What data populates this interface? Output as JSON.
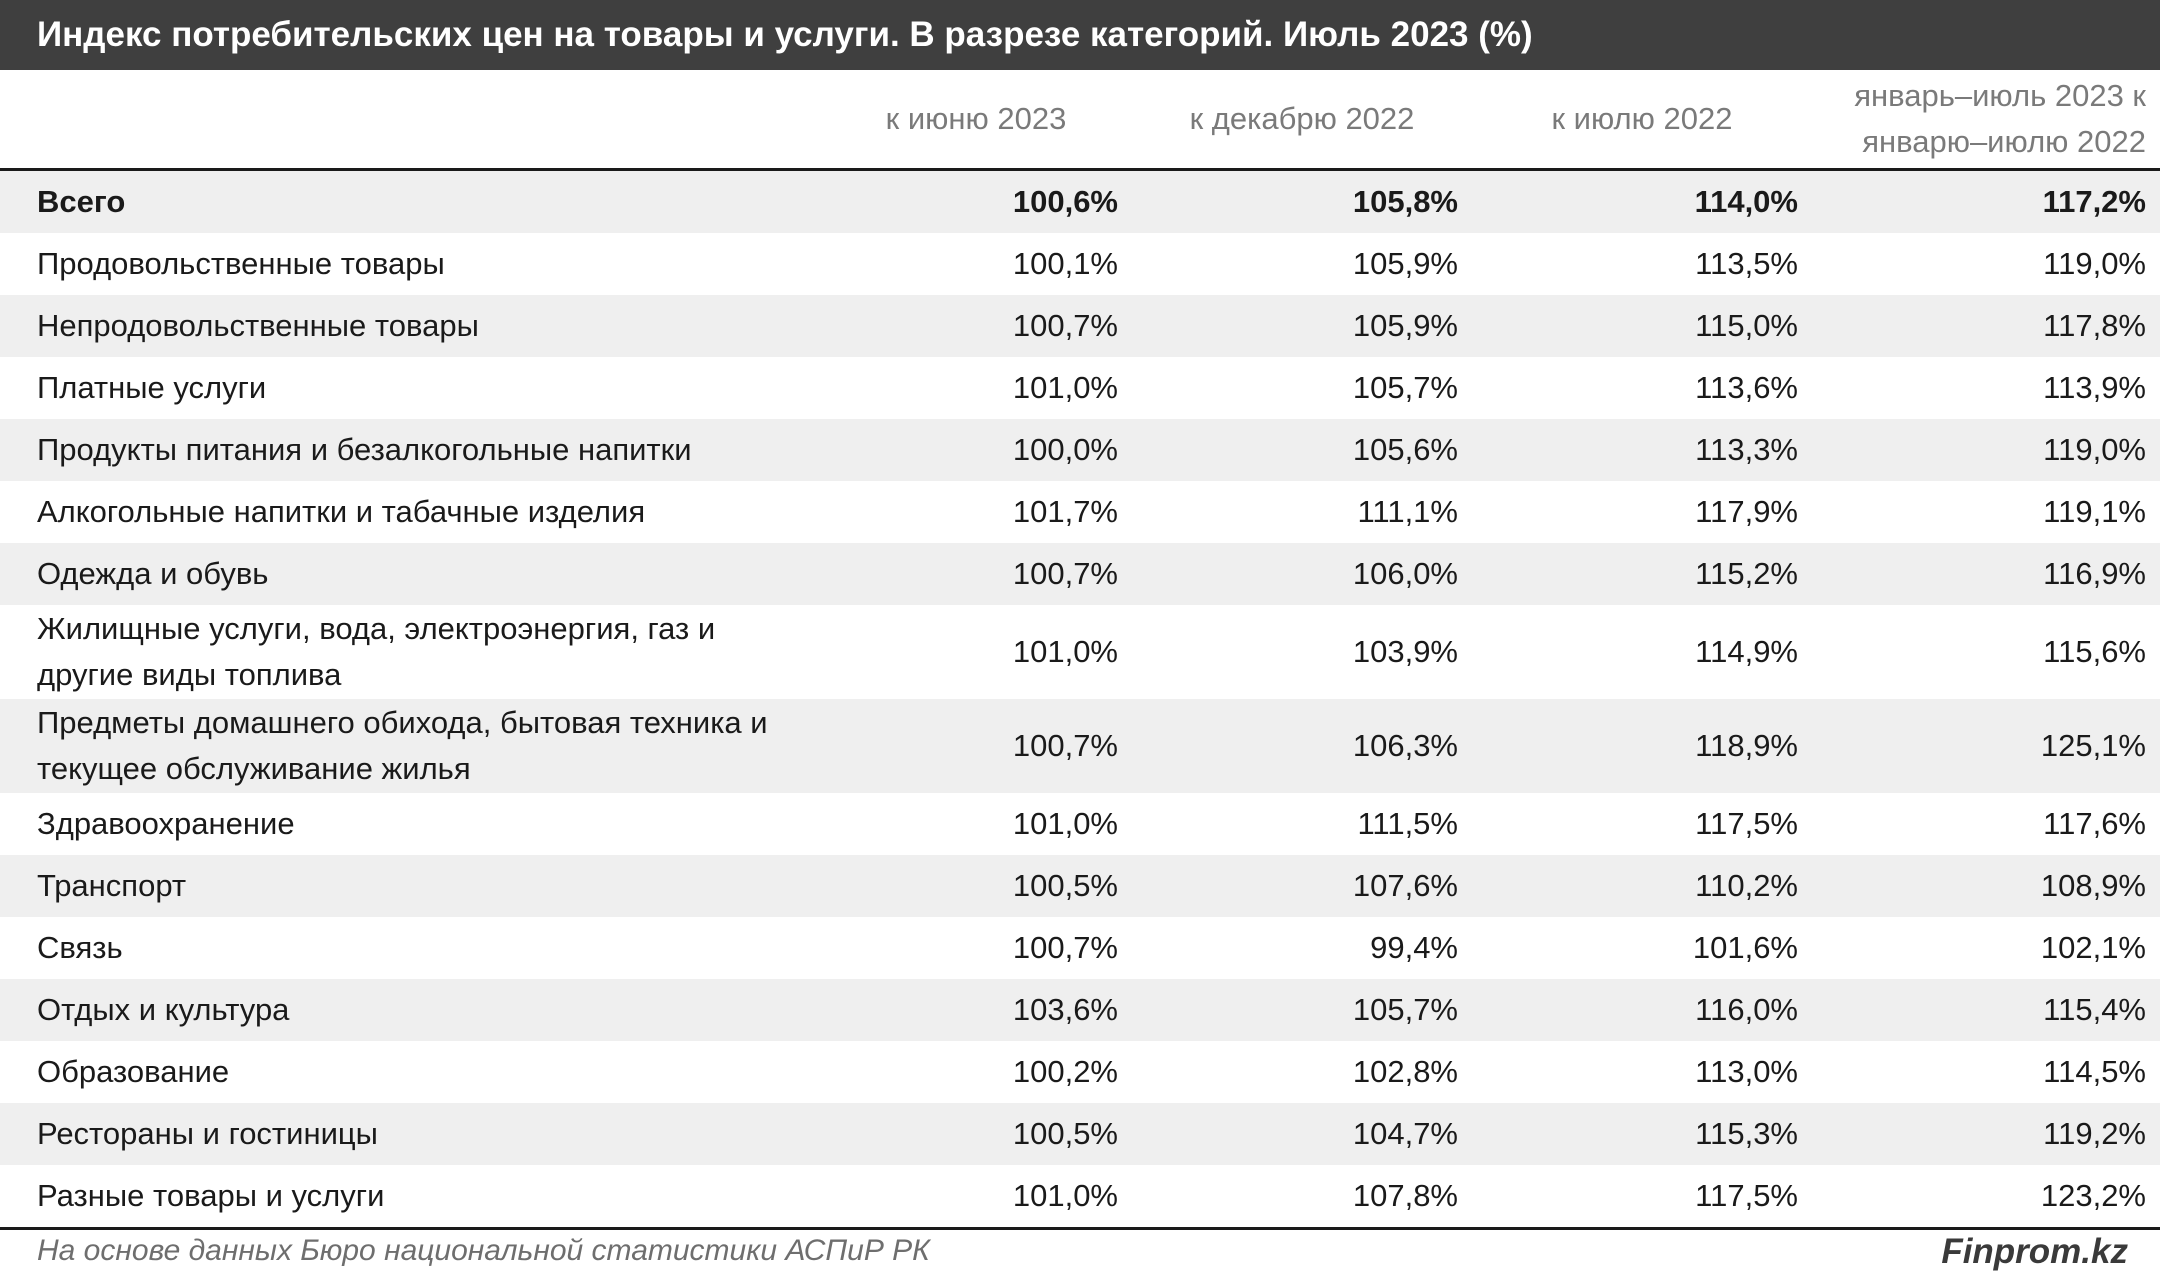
{
  "title": "Индекс потребительских цен на товары и услуги. В разрезе категорий. Июль 2023 (%)",
  "columns": [
    "к июню 2023",
    "к декабрю 2022",
    "к июлю 2022",
    "январь–июль 2023 к январю–июлю 2022"
  ],
  "rows": [
    {
      "category": "Всего",
      "values": [
        "100,6%",
        "105,8%",
        "114,0%",
        "117,2%"
      ]
    },
    {
      "category": "Продовольственные товары",
      "values": [
        "100,1%",
        "105,9%",
        "113,5%",
        "119,0%"
      ]
    },
    {
      "category": "Непродовольственные товары",
      "values": [
        "100,7%",
        "105,9%",
        "115,0%",
        "117,8%"
      ]
    },
    {
      "category": "Платные услуги",
      "values": [
        "101,0%",
        "105,7%",
        "113,6%",
        "113,9%"
      ]
    },
    {
      "category": "Продукты питания и безалкогольные напитки",
      "values": [
        "100,0%",
        "105,6%",
        "113,3%",
        "119,0%"
      ]
    },
    {
      "category": "Алкогольные напитки и табачные изделия",
      "values": [
        "101,7%",
        "111,1%",
        "117,9%",
        "119,1%"
      ]
    },
    {
      "category": "Одежда и обувь",
      "values": [
        "100,7%",
        "106,0%",
        "115,2%",
        "116,9%"
      ]
    },
    {
      "category": "Жилищные услуги, вода, электроэнергия, газ и другие виды топлива",
      "values": [
        "101,0%",
        "103,9%",
        "114,9%",
        "115,6%"
      ]
    },
    {
      "category": "Предметы домашнего обихода, бытовая техника и текущее обслуживание жилья",
      "values": [
        "100,7%",
        "106,3%",
        "118,9%",
        "125,1%"
      ]
    },
    {
      "category": "Здравоохранение",
      "values": [
        "101,0%",
        "111,5%",
        "117,5%",
        "117,6%"
      ]
    },
    {
      "category": "Транспорт",
      "values": [
        "100,5%",
        "107,6%",
        "110,2%",
        "108,9%"
      ]
    },
    {
      "category": "Связь",
      "values": [
        "100,7%",
        "99,4%",
        "101,6%",
        "102,1%"
      ]
    },
    {
      "category": "Отдых и культура",
      "values": [
        "103,6%",
        "105,7%",
        "116,0%",
        "115,4%"
      ]
    },
    {
      "category": "Образование",
      "values": [
        "100,2%",
        "102,8%",
        "113,0%",
        "114,5%"
      ]
    },
    {
      "category": "Рестораны и гостиницы",
      "values": [
        "100,5%",
        "104,7%",
        "115,3%",
        "119,2%"
      ]
    },
    {
      "category": "Разные товары и услуги",
      "values": [
        "101,0%",
        "107,8%",
        "117,5%",
        "123,2%"
      ]
    }
  ],
  "footer": {
    "source": "На основе данных Бюро национальной статистики АСПиР РК",
    "brand": "Finprom.kz"
  }
}
